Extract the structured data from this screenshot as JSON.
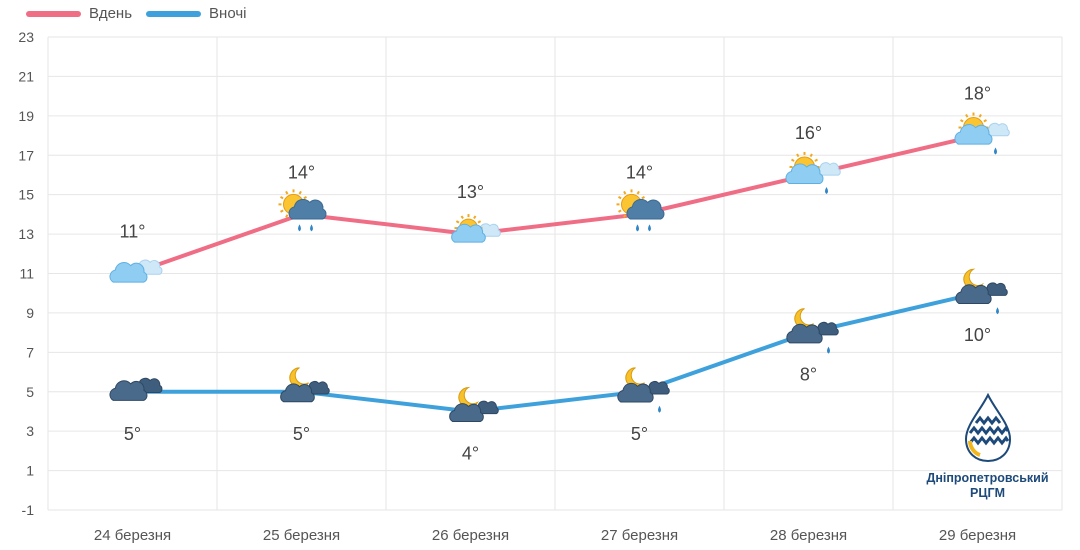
{
  "legend": {
    "day_label": "Вдень",
    "night_label": "Вночі"
  },
  "logo": {
    "line1": "Дніпропетровський",
    "line2": "РЦГМ"
  },
  "colors": {
    "day": "#ef6e86",
    "night": "#3fa1dc",
    "grid": "#e6e6e6",
    "text": "#555555",
    "logo": "#1d4a7a",
    "logo_accent": "#f2b71c"
  },
  "chart_data": {
    "type": "line",
    "categories": [
      "24 березня",
      "25 березня",
      "26 березня",
      "27 березня",
      "28 березня",
      "29 березня"
    ],
    "ylim": [
      -1,
      23
    ],
    "yticks": [
      -1,
      1,
      3,
      5,
      7,
      9,
      11,
      13,
      15,
      17,
      19,
      21,
      23
    ],
    "grid": true,
    "legend_position": "top-left",
    "series": [
      {
        "name": "Вдень",
        "values": [
          11,
          14,
          13,
          14,
          16,
          18
        ],
        "labels": [
          "11°",
          "14°",
          "13°",
          "14°",
          "16°",
          "18°"
        ],
        "icons": [
          "cloudy",
          "sun-rain",
          "partly-cloudy",
          "sun-rain",
          "sun-cloud-light-rain",
          "sun-cloud-light-rain"
        ]
      },
      {
        "name": "Вночі",
        "values": [
          5,
          5,
          4,
          5,
          8,
          10
        ],
        "labels": [
          "5°",
          "5°",
          "4°",
          "5°",
          "8°",
          "10°"
        ],
        "icons": [
          "overcast-night",
          "moon-cloud",
          "moon-cloud",
          "moon-cloud-rain",
          "moon-cloud-rain",
          "moon-cloud-rain"
        ]
      }
    ]
  }
}
